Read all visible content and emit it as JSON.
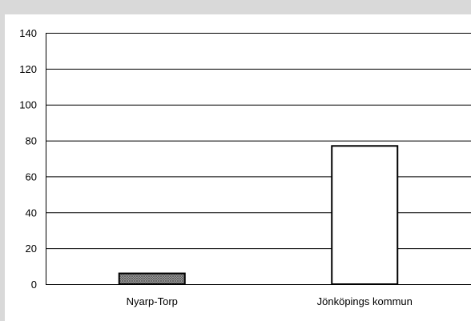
{
  "chart_data": {
    "type": "bar",
    "categories": [
      "Nyarp-Torp",
      "Jönköpings kommun"
    ],
    "values": [
      6,
      77
    ],
    "title": "",
    "xlabel": "",
    "ylabel": "",
    "ylim": [
      0,
      140
    ],
    "yticks": [
      0,
      20,
      40,
      60,
      80,
      100,
      120,
      140
    ],
    "grid": true,
    "bar_fills": [
      "#9a9a9a",
      "#ffffff"
    ],
    "bar_patterns": [
      "crosshatch",
      "none"
    ]
  }
}
